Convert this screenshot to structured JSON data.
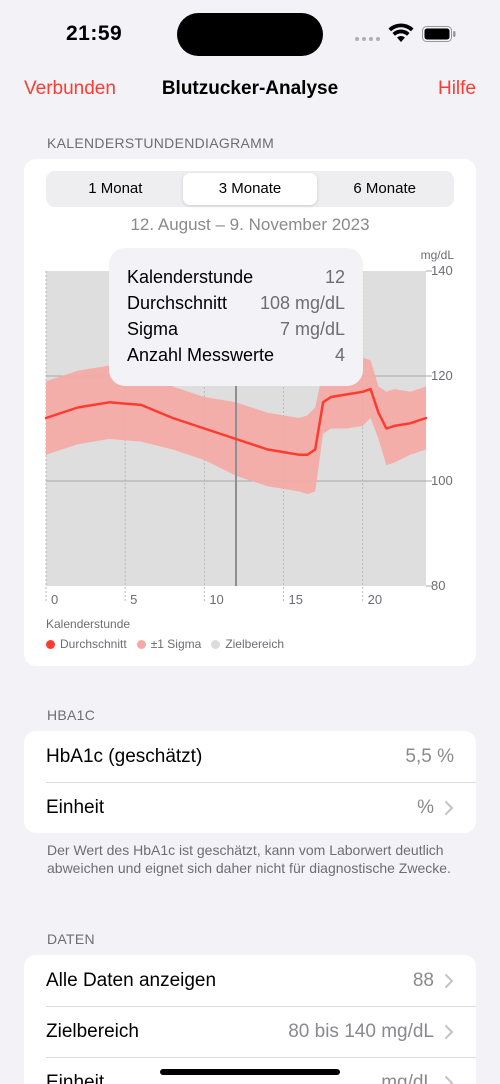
{
  "status": {
    "time": "21:59"
  },
  "nav": {
    "left": "Verbunden",
    "title": "Blutzucker-Analyse",
    "right": "Hilfe"
  },
  "chart_section": {
    "header": "KALENDERSTUNDENDIAGRAMM",
    "segments": [
      "1 Monat",
      "3 Monate",
      "6 Monate"
    ],
    "selected_segment": "3 Monate",
    "date_range": "12. August – 9. November 2023",
    "tooltip": {
      "rows": [
        {
          "label": "Kalenderstunde",
          "value": "12"
        },
        {
          "label": "Durchschnitt",
          "value": "108 mg/dL"
        },
        {
          "label": "Sigma",
          "value": "7 mg/dL"
        },
        {
          "label": "Anzahl Messwerte",
          "value": "4"
        }
      ]
    },
    "legend_title": "Kalenderstunde",
    "legend": [
      {
        "label": "Durchschnitt",
        "color": "#ff3b30"
      },
      {
        "label": "±1 Sigma",
        "color": "#f5a9a4"
      },
      {
        "label": "Zielbereich",
        "color": "#dcdcdc"
      }
    ]
  },
  "chart_data": {
    "type": "line",
    "ylabel": "mg/dL",
    "xlabel": "Kalenderstunde",
    "x_ticks": [
      "0",
      "5",
      "10",
      "15",
      "20"
    ],
    "y_ticks": [
      "140",
      "120",
      "100",
      "80"
    ],
    "xlim": [
      0,
      24
    ],
    "ylim": [
      80,
      140
    ],
    "target_range": [
      80,
      140
    ],
    "selected_hour": 12,
    "x": [
      0,
      2,
      4,
      6,
      8,
      10,
      12,
      14,
      15,
      16,
      16.5,
      17,
      17.5,
      18,
      19,
      20,
      20.5,
      21,
      21.5,
      22,
      23,
      24
    ],
    "series": [
      {
        "name": "Durchschnitt",
        "values": [
          112,
          114,
          115,
          114.5,
          112,
          110,
          108,
          106,
          105.5,
          105,
          105,
          106,
          115,
          116,
          116.5,
          117,
          117.5,
          113,
          110,
          110.5,
          111,
          112
        ]
      },
      {
        "name": "±1 Sigma",
        "upper": [
          119,
          121,
          122,
          121,
          118,
          116,
          115,
          113,
          112.5,
          112,
          112.5,
          114,
          121,
          122,
          123,
          123.5,
          123,
          118,
          117,
          117.5,
          117,
          118
        ],
        "lower": [
          105,
          107,
          108,
          107.5,
          106,
          104,
          101,
          99,
          98.5,
          98,
          97.5,
          98,
          109,
          110,
          110,
          110.5,
          112,
          108,
          103,
          103.5,
          105,
          106
        ]
      }
    ]
  },
  "hba1c_section": {
    "header": "HBA1C",
    "rows": [
      {
        "label": "HbA1c (geschätzt)",
        "value": "5,5 %"
      },
      {
        "label": "Einheit",
        "value": "%"
      }
    ],
    "footnote": "Der Wert des HbA1c ist geschätzt, kann vom Laborwert deutlich abweichen und eignet sich daher nicht für diagnostische Zwecke."
  },
  "data_section": {
    "header": "DATEN",
    "rows": [
      {
        "label": "Alle Daten anzeigen",
        "value": "88"
      },
      {
        "label": "Zielbereich",
        "value": "80 bis 140 mg/dL"
      },
      {
        "label": "Einheit",
        "value": "mg/dL"
      }
    ]
  }
}
